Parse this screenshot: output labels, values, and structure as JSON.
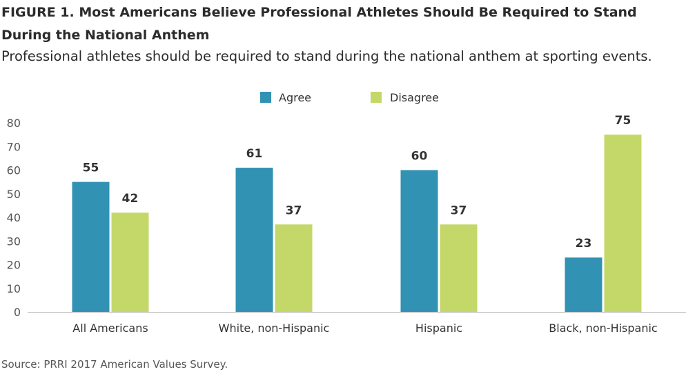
{
  "figure": {
    "title": "FIGURE 1.  Most Americans Believe Professional Athletes Should Be Required to Stand During the National Anthem",
    "subtitle": "Professional athletes should be required to stand during the national anthem at sporting events.",
    "source": "Source: PRRI 2017 American Values Survey."
  },
  "colors": {
    "agree": "#3192b3",
    "disagree": "#c3d868"
  },
  "chart_data": {
    "type": "bar",
    "categories": [
      "All Americans",
      "White, non-Hispanic",
      "Hispanic",
      "Black, non-Hispanic"
    ],
    "series": [
      {
        "name": "Agree",
        "values": [
          55,
          61,
          60,
          23
        ]
      },
      {
        "name": "Disagree",
        "values": [
          42,
          37,
          37,
          75
        ]
      }
    ],
    "ylim": [
      0,
      80
    ],
    "yticks": [
      0,
      10,
      20,
      30,
      40,
      50,
      60,
      70,
      80
    ],
    "grid": false,
    "legend": "top-center"
  }
}
